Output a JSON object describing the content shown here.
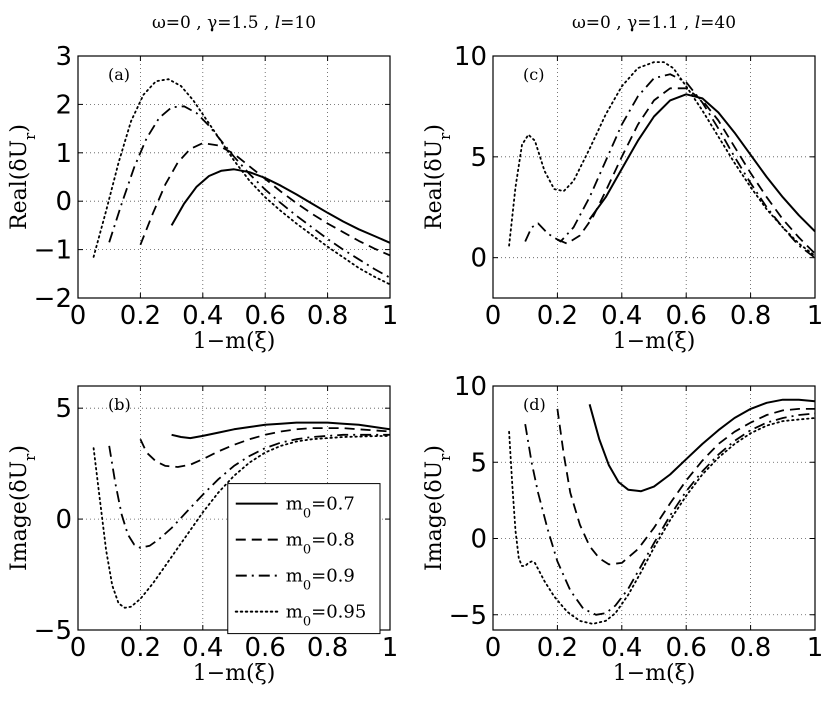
{
  "chart_data": [
    {
      "type": "line",
      "panel_label": "(a)",
      "column_title": "ω=0 , γ=1.5 , l=10",
      "xlabel": "1−m(ξ)",
      "ylabel": "Real(δU_r)",
      "xlim": [
        0,
        1
      ],
      "ylim": [
        -2,
        3
      ],
      "xticks": [
        0,
        0.2,
        0.4,
        0.6,
        0.8,
        1
      ],
      "xtick_labels": [
        "0",
        "0.2",
        "0.4",
        "0.6",
        "0.8",
        "1"
      ],
      "yticks": [
        -2,
        -1,
        0,
        1,
        2,
        3
      ],
      "ytick_labels": [
        "−2",
        "−1",
        "0",
        "1",
        "2",
        "3"
      ],
      "grid": true,
      "series": [
        {
          "name": "m_0=0.7",
          "style": "solid",
          "x": [
            0.3,
            0.34,
            0.38,
            0.42,
            0.46,
            0.5,
            0.55,
            0.6,
            0.65,
            0.7,
            0.75,
            0.8,
            0.85,
            0.9,
            0.95,
            1.0
          ],
          "y": [
            -0.5,
            -0.05,
            0.3,
            0.52,
            0.63,
            0.66,
            0.6,
            0.48,
            0.32,
            0.14,
            -0.05,
            -0.24,
            -0.42,
            -0.58,
            -0.72,
            -0.86
          ]
        },
        {
          "name": "m_0=0.8",
          "style": "dashed",
          "x": [
            0.2,
            0.24,
            0.28,
            0.32,
            0.36,
            0.4,
            0.45,
            0.5,
            0.55,
            0.6,
            0.65,
            0.7,
            0.75,
            0.8,
            0.85,
            0.9,
            0.95,
            1.0
          ],
          "y": [
            -0.9,
            -0.25,
            0.35,
            0.8,
            1.08,
            1.2,
            1.15,
            0.98,
            0.72,
            0.46,
            0.2,
            -0.04,
            -0.26,
            -0.46,
            -0.64,
            -0.82,
            -0.98,
            -1.12
          ]
        },
        {
          "name": "m_0=0.9",
          "style": "dashdot",
          "x": [
            0.1,
            0.14,
            0.18,
            0.22,
            0.26,
            0.3,
            0.34,
            0.38,
            0.42,
            0.46,
            0.5,
            0.55,
            0.6,
            0.65,
            0.7,
            0.75,
            0.8,
            0.85,
            0.9,
            0.95,
            1.0
          ],
          "y": [
            -0.85,
            -0.05,
            0.7,
            1.3,
            1.72,
            1.94,
            1.96,
            1.82,
            1.56,
            1.24,
            0.92,
            0.56,
            0.24,
            -0.04,
            -0.3,
            -0.54,
            -0.78,
            -1.0,
            -1.2,
            -1.4,
            -1.58
          ]
        },
        {
          "name": "m_0=0.95",
          "style": "dotted",
          "x": [
            0.05,
            0.09,
            0.13,
            0.17,
            0.21,
            0.25,
            0.29,
            0.33,
            0.37,
            0.41,
            0.45,
            0.5,
            0.55,
            0.6,
            0.65,
            0.7,
            0.75,
            0.8,
            0.85,
            0.9,
            0.95,
            1.0
          ],
          "y": [
            -1.15,
            -0.2,
            0.8,
            1.65,
            2.2,
            2.48,
            2.52,
            2.38,
            2.08,
            1.7,
            1.32,
            0.84,
            0.42,
            0.08,
            -0.2,
            -0.46,
            -0.7,
            -0.94,
            -1.16,
            -1.38,
            -1.56,
            -1.72
          ]
        }
      ]
    },
    {
      "type": "line",
      "panel_label": "(c)",
      "column_title": "ω=0 , γ=1.1 , l=40",
      "xlabel": "1−m(ξ)",
      "ylabel": "Real(δU_r)",
      "xlim": [
        0,
        1
      ],
      "ylim": [
        -2,
        10
      ],
      "xticks": [
        0,
        0.2,
        0.4,
        0.6,
        0.8,
        1
      ],
      "xtick_labels": [
        "0",
        "0.2",
        "0.4",
        "0.6",
        "0.8",
        "1"
      ],
      "yticks": [
        0,
        5,
        10
      ],
      "ytick_labels": [
        "0",
        "5",
        "10"
      ],
      "grid": true,
      "series": [
        {
          "name": "m_0=0.7",
          "style": "solid",
          "x": [
            0.3,
            0.35,
            0.4,
            0.45,
            0.5,
            0.55,
            0.6,
            0.65,
            0.7,
            0.75,
            0.8,
            0.85,
            0.9,
            0.95,
            1.0
          ],
          "y": [
            1.9,
            3.0,
            4.4,
            5.8,
            7.0,
            7.8,
            8.1,
            7.9,
            7.2,
            6.2,
            5.1,
            4.0,
            3.0,
            2.1,
            1.3
          ]
        },
        {
          "name": "m_0=0.8",
          "style": "dashed",
          "x": [
            0.2,
            0.23,
            0.27,
            0.31,
            0.35,
            0.4,
            0.45,
            0.5,
            0.55,
            0.6,
            0.65,
            0.7,
            0.75,
            0.8,
            0.85,
            0.9,
            0.95,
            1.0
          ],
          "y": [
            0.9,
            0.7,
            1.1,
            2.0,
            3.3,
            5.0,
            6.6,
            7.8,
            8.4,
            8.4,
            7.8,
            6.8,
            5.5,
            4.2,
            3.0,
            1.9,
            1.0,
            0.2
          ]
        },
        {
          "name": "m_0=0.9",
          "style": "dashdot",
          "x": [
            0.1,
            0.12,
            0.14,
            0.17,
            0.21,
            0.25,
            0.3,
            0.35,
            0.4,
            0.45,
            0.5,
            0.55,
            0.6,
            0.65,
            0.7,
            0.75,
            0.8,
            0.85,
            0.9,
            0.95,
            1.0
          ],
          "y": [
            0.8,
            1.5,
            1.7,
            1.2,
            0.8,
            1.5,
            3.0,
            4.8,
            6.6,
            8.0,
            8.9,
            9.1,
            8.7,
            7.7,
            6.4,
            5.0,
            3.7,
            2.5,
            1.5,
            0.6,
            0.0
          ]
        },
        {
          "name": "m_0=0.95",
          "style": "dotted",
          "x": [
            0.05,
            0.07,
            0.09,
            0.11,
            0.13,
            0.16,
            0.19,
            0.22,
            0.25,
            0.3,
            0.35,
            0.4,
            0.45,
            0.5,
            0.53,
            0.56,
            0.6,
            0.65,
            0.7,
            0.75,
            0.8,
            0.85,
            0.9,
            0.95,
            1.0
          ],
          "y": [
            0.6,
            3.5,
            5.6,
            6.1,
            5.8,
            4.3,
            3.4,
            3.3,
            3.8,
            5.4,
            7.1,
            8.5,
            9.4,
            9.7,
            9.7,
            9.4,
            8.5,
            7.3,
            6.0,
            4.7,
            3.5,
            2.4,
            1.5,
            0.7,
            0.1
          ]
        }
      ]
    },
    {
      "type": "line",
      "panel_label": "(b)",
      "xlabel": "1−m(ξ)",
      "ylabel": "Image(δU_r)",
      "xlim": [
        0,
        1
      ],
      "ylim": [
        -5,
        6
      ],
      "xticks": [
        0,
        0.2,
        0.4,
        0.6,
        0.8,
        1
      ],
      "xtick_labels": [
        "0",
        "0.2",
        "0.4",
        "0.6",
        "0.8",
        "1"
      ],
      "yticks": [
        -5,
        0,
        5
      ],
      "ytick_labels": [
        "−5",
        "0",
        "5"
      ],
      "grid": true,
      "legend": {
        "position": "lower-right",
        "entries": [
          "m_0=0.7",
          "m_0=0.8",
          "m_0=0.9",
          "m_0=0.95"
        ]
      },
      "series": [
        {
          "name": "m_0=0.7",
          "style": "solid",
          "x": [
            0.3,
            0.33,
            0.36,
            0.4,
            0.45,
            0.5,
            0.55,
            0.6,
            0.65,
            0.7,
            0.75,
            0.8,
            0.85,
            0.9,
            0.95,
            1.0
          ],
          "y": [
            3.8,
            3.7,
            3.65,
            3.75,
            3.9,
            4.05,
            4.15,
            4.25,
            4.3,
            4.35,
            4.35,
            4.35,
            4.3,
            4.25,
            4.15,
            4.05
          ]
        },
        {
          "name": "m_0=0.8",
          "style": "dashed",
          "x": [
            0.2,
            0.22,
            0.25,
            0.28,
            0.32,
            0.36,
            0.4,
            0.45,
            0.5,
            0.55,
            0.6,
            0.65,
            0.7,
            0.75,
            0.8,
            0.85,
            0.9,
            0.95,
            1.0
          ],
          "y": [
            3.6,
            3.0,
            2.6,
            2.4,
            2.35,
            2.45,
            2.7,
            3.05,
            3.35,
            3.6,
            3.8,
            3.95,
            4.05,
            4.1,
            4.1,
            4.1,
            4.05,
            4.0,
            3.95
          ]
        },
        {
          "name": "m_0=0.9",
          "style": "dashdot",
          "x": [
            0.1,
            0.12,
            0.14,
            0.16,
            0.18,
            0.2,
            0.23,
            0.26,
            0.3,
            0.35,
            0.4,
            0.45,
            0.5,
            0.55,
            0.6,
            0.65,
            0.7,
            0.75,
            0.8,
            0.85,
            0.9,
            0.95,
            1.0
          ],
          "y": [
            3.3,
            1.6,
            0.2,
            -0.7,
            -1.15,
            -1.3,
            -1.2,
            -0.9,
            -0.4,
            0.35,
            1.1,
            1.8,
            2.4,
            2.85,
            3.2,
            3.45,
            3.6,
            3.7,
            3.75,
            3.8,
            3.8,
            3.8,
            3.8
          ]
        },
        {
          "name": "m_0=0.95",
          "style": "dotted",
          "x": [
            0.05,
            0.07,
            0.09,
            0.11,
            0.13,
            0.15,
            0.17,
            0.2,
            0.24,
            0.28,
            0.32,
            0.36,
            0.4,
            0.45,
            0.5,
            0.55,
            0.6,
            0.65,
            0.7,
            0.75,
            0.8,
            0.85,
            0.9,
            0.95,
            1.0
          ],
          "y": [
            3.2,
            0.9,
            -1.4,
            -3.0,
            -3.8,
            -4.0,
            -3.95,
            -3.6,
            -2.9,
            -2.1,
            -1.3,
            -0.5,
            0.3,
            1.2,
            1.95,
            2.55,
            3.0,
            3.3,
            3.5,
            3.6,
            3.65,
            3.7,
            3.72,
            3.74,
            3.75
          ]
        }
      ]
    },
    {
      "type": "line",
      "panel_label": "(d)",
      "xlabel": "1−m(ξ)",
      "ylabel": "Image(δU_r)",
      "xlim": [
        0,
        1
      ],
      "ylim": [
        -6,
        10
      ],
      "xticks": [
        0,
        0.2,
        0.4,
        0.6,
        0.8,
        1
      ],
      "xtick_labels": [
        "0",
        "0.2",
        "0.4",
        "0.6",
        "0.8",
        "1"
      ],
      "yticks": [
        -5,
        0,
        5,
        10
      ],
      "ytick_labels": [
        "−5",
        "0",
        "5",
        "10"
      ],
      "grid": true,
      "series": [
        {
          "name": "m_0=0.7",
          "style": "solid",
          "x": [
            0.3,
            0.33,
            0.36,
            0.39,
            0.42,
            0.46,
            0.5,
            0.55,
            0.6,
            0.65,
            0.7,
            0.75,
            0.8,
            0.85,
            0.9,
            0.95,
            1.0
          ],
          "y": [
            8.8,
            6.5,
            4.8,
            3.7,
            3.2,
            3.1,
            3.4,
            4.2,
            5.2,
            6.2,
            7.1,
            7.9,
            8.5,
            8.9,
            9.1,
            9.1,
            9.0
          ]
        },
        {
          "name": "m_0=0.8",
          "style": "dashed",
          "x": [
            0.2,
            0.22,
            0.24,
            0.27,
            0.3,
            0.33,
            0.36,
            0.4,
            0.45,
            0.5,
            0.55,
            0.6,
            0.65,
            0.7,
            0.75,
            0.8,
            0.85,
            0.9,
            0.95,
            1.0
          ],
          "y": [
            8.5,
            5.5,
            3.0,
            0.9,
            -0.5,
            -1.3,
            -1.7,
            -1.6,
            -0.7,
            0.7,
            2.3,
            3.8,
            5.1,
            6.2,
            7.0,
            7.6,
            8.1,
            8.4,
            8.5,
            8.5
          ]
        },
        {
          "name": "m_0=0.9",
          "style": "dashdot",
          "x": [
            0.1,
            0.12,
            0.14,
            0.17,
            0.2,
            0.24,
            0.28,
            0.32,
            0.35,
            0.38,
            0.42,
            0.46,
            0.5,
            0.55,
            0.6,
            0.65,
            0.7,
            0.75,
            0.8,
            0.85,
            0.9,
            0.95,
            1.0
          ],
          "y": [
            7.5,
            5.0,
            3.0,
            0.6,
            -1.5,
            -3.4,
            -4.6,
            -5.0,
            -4.9,
            -4.4,
            -3.3,
            -1.8,
            -0.3,
            1.5,
            3.1,
            4.4,
            5.5,
            6.4,
            7.1,
            7.6,
            7.9,
            8.1,
            8.2
          ]
        },
        {
          "name": "m_0=0.95",
          "style": "dotted",
          "x": [
            0.05,
            0.06,
            0.07,
            0.08,
            0.09,
            0.1,
            0.11,
            0.12,
            0.13,
            0.14,
            0.16,
            0.19,
            0.23,
            0.27,
            0.31,
            0.35,
            0.38,
            0.42,
            0.46,
            0.5,
            0.55,
            0.6,
            0.65,
            0.7,
            0.75,
            0.8,
            0.85,
            0.9,
            0.95,
            1.0
          ],
          "y": [
            7.0,
            3.5,
            0.5,
            -1.3,
            -1.8,
            -1.8,
            -1.6,
            -1.5,
            -1.6,
            -2.0,
            -2.8,
            -3.8,
            -4.8,
            -5.4,
            -5.6,
            -5.4,
            -4.9,
            -3.7,
            -2.2,
            -0.6,
            1.2,
            2.8,
            4.2,
            5.3,
            6.2,
            6.9,
            7.4,
            7.7,
            7.8,
            7.9
          ]
        }
      ]
    }
  ]
}
